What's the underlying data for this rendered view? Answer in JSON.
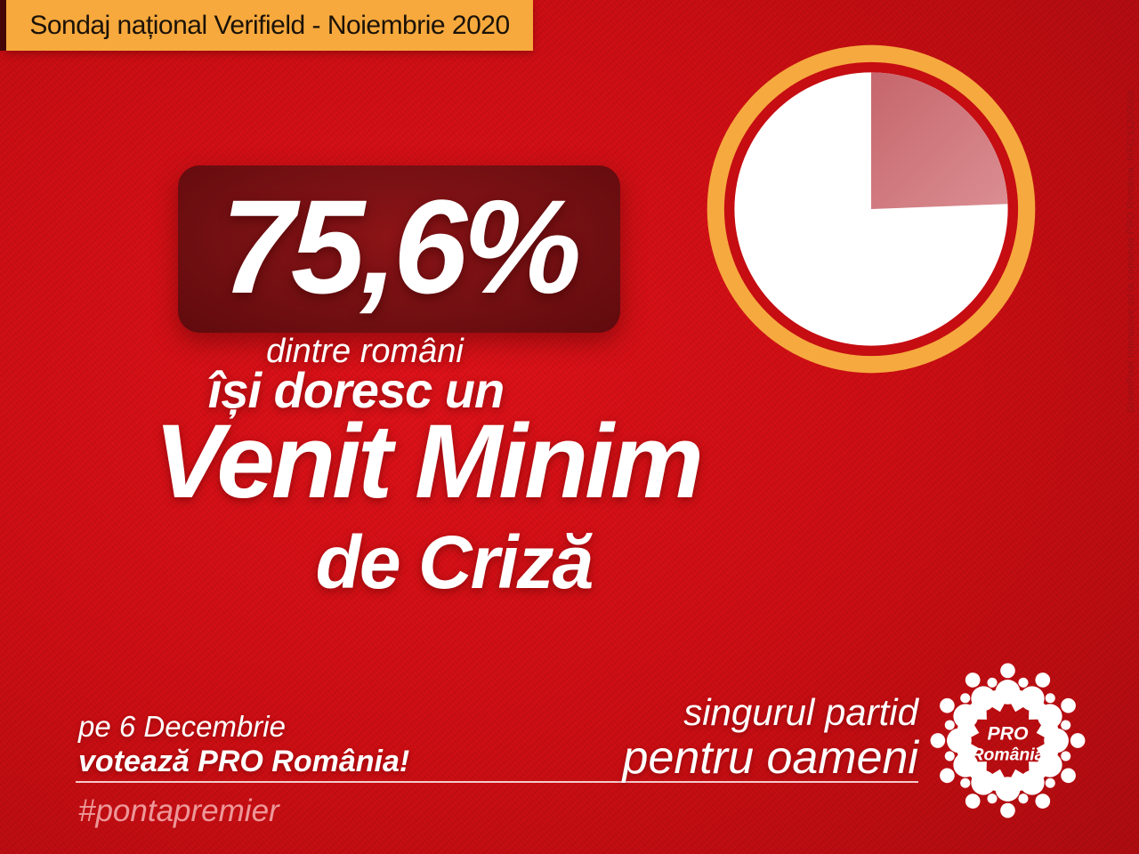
{
  "banner": {
    "label": "Sondaj național Verifield - Noiembrie 2020"
  },
  "stat": {
    "percentage": "75,6%",
    "caption": "dintre români"
  },
  "headline": {
    "line1": "își doresc un",
    "line2": "Venit Minim",
    "line3": "de Criză"
  },
  "chart_data": {
    "type": "pie",
    "title": "75,6% dintre români își doresc un Venit Minim de Criză",
    "slices": [
      {
        "label": "își doresc un Venit Minim de Criză",
        "value": 75.6,
        "color": "#ffffff"
      },
      {
        "label": "",
        "value": 24.4,
        "color": "#d0747a"
      }
    ],
    "slice_gradient": [
      "#c5666c",
      "#db8e92"
    ],
    "start_angle_deg": 0,
    "direction": "clockwise",
    "ring_color": "#f6a93f",
    "ring_gap_color": "#c50d12",
    "legend": "none",
    "data_labels": "none"
  },
  "cta": {
    "when": "pe 6 Decembrie",
    "vote": "votează PRO România!",
    "hashtag": "#pontapremier"
  },
  "slogan": {
    "line1": "singurul partid",
    "line2": "pentru oameni"
  },
  "logo": {
    "line1": "PRO",
    "line2": "România"
  },
  "disclaimer": {
    "text": "GreenPixel Interactive srl la comanda PRO România. MFC 11200008"
  },
  "colors": {
    "background_red": "#cf0e13",
    "banner_bg": "#f7a93d",
    "banner_text": "#1b1208",
    "stat_box_bg": "#741013",
    "accent_white": "#ffffff",
    "hashtag_text": "rgba(255,205,205,0.72)",
    "disclaimer_text": "#961216"
  }
}
